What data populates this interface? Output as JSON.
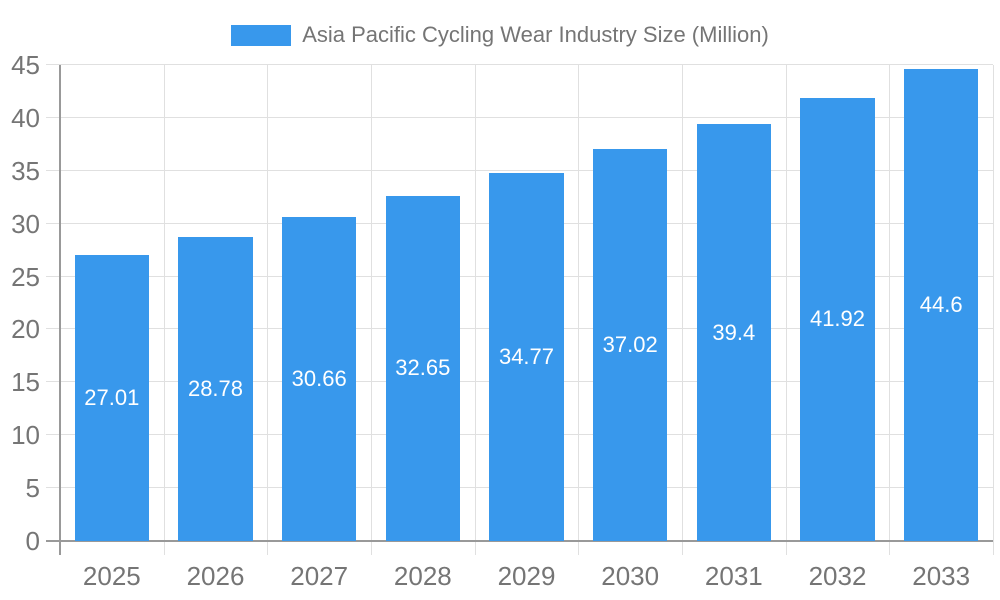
{
  "legend": {
    "series_label": "Asia Pacific Cycling Wear Industry Size (Million)"
  },
  "chart_data": {
    "type": "bar",
    "title": "Asia Pacific Cycling Wear Industry Size (Million)",
    "categories": [
      "2025",
      "2026",
      "2027",
      "2028",
      "2029",
      "2030",
      "2031",
      "2032",
      "2033"
    ],
    "values": [
      27.01,
      28.78,
      30.66,
      32.65,
      34.77,
      37.02,
      39.4,
      41.92,
      44.6
    ],
    "value_labels": [
      "27.01",
      "28.78",
      "30.66",
      "32.65",
      "34.77",
      "37.02",
      "39.4",
      "41.92",
      "44.6"
    ],
    "xlabel": "",
    "ylabel": "",
    "ylim": [
      0,
      45
    ],
    "ytick_interval": 5,
    "ytick_labels": [
      "0",
      "5",
      "10",
      "15",
      "20",
      "25",
      "30",
      "35",
      "40",
      "45"
    ],
    "grid": true,
    "legend_position": "top-center",
    "colors": {
      "bar": "#3898ec",
      "bar_label": "#ffffff",
      "axis": "#999999",
      "grid": "#e0e0e0",
      "tick_text": "#757575",
      "legend_text": "#757575"
    }
  }
}
